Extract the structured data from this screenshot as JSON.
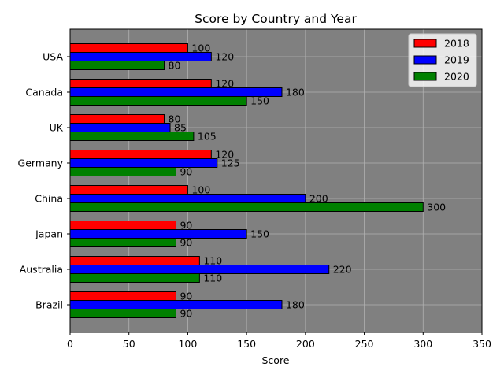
{
  "chart_data": {
    "type": "bar",
    "orientation": "horizontal",
    "title": "Score by Country and Year",
    "xlabel": "Score",
    "ylabel": "",
    "categories": [
      "USA",
      "Canada",
      "UK",
      "Germany",
      "China",
      "Japan",
      "Australia",
      "Brazil"
    ],
    "series": [
      {
        "name": "2018",
        "color": "#ff0000",
        "values": [
          100,
          120,
          80,
          120,
          100,
          90,
          110,
          90
        ]
      },
      {
        "name": "2019",
        "color": "#0000ff",
        "values": [
          120,
          180,
          85,
          125,
          200,
          150,
          220,
          180
        ]
      },
      {
        "name": "2020",
        "color": "#008000",
        "values": [
          80,
          150,
          105,
          90,
          300,
          90,
          110,
          90
        ]
      }
    ],
    "xlim": [
      0,
      350
    ],
    "xticks": [
      0,
      50,
      100,
      150,
      200,
      250,
      300,
      350
    ],
    "grid": true,
    "legend_position": "top-right",
    "plot_background": "#808080",
    "bar_edge_color": "#000000",
    "data_labels": true
  }
}
